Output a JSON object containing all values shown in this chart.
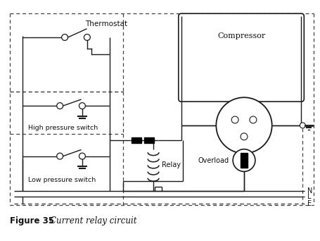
{
  "title": "Figure 35",
  "subtitle": "Current relay circuit",
  "bg_color": "#ffffff",
  "line_color": "#1a1a1a",
  "dashed_color": "#444444",
  "text_color": "#111111",
  "label_thermostat": "Thermostat",
  "label_high_pressure": "High pressure switch",
  "label_low_pressure": "Low pressure switch",
  "label_relay": "Relay",
  "label_overload": "Overload",
  "label_compressor": "Compressor",
  "label_N": "N",
  "label_L": "L",
  "label_E": "E"
}
